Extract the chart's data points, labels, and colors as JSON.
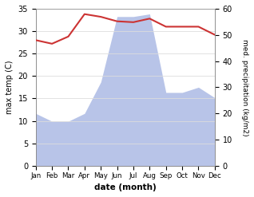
{
  "months": [
    "Jan",
    "Feb",
    "Mar",
    "Apr",
    "May",
    "Jun",
    "Jul",
    "Aug",
    "Sep",
    "Oct",
    "Nov",
    "Dec"
  ],
  "month_indices": [
    0,
    1,
    2,
    3,
    4,
    5,
    6,
    7,
    8,
    9,
    10,
    11
  ],
  "temperature": [
    28.0,
    27.2,
    28.8,
    33.8,
    33.2,
    32.2,
    32.0,
    32.8,
    31.0,
    31.0,
    31.0,
    29.2
  ],
  "precipitation": [
    20,
    17,
    17,
    20,
    32,
    57,
    57,
    58,
    28,
    28,
    30,
    26
  ],
  "temp_color": "#cc3333",
  "precip_color": "#b8c4e8",
  "temp_ylim": [
    0,
    35
  ],
  "precip_ylim": [
    0,
    60
  ],
  "temp_yticks": [
    0,
    5,
    10,
    15,
    20,
    25,
    30,
    35
  ],
  "precip_yticks": [
    0,
    10,
    20,
    30,
    40,
    50,
    60
  ],
  "ylabel_left": "max temp (C)",
  "ylabel_right": "med. precipitation (kg/m2)",
  "xlabel": "date (month)",
  "bg_color": "#ffffff",
  "fig_bg_color": "#ffffff",
  "grid_color": "#dddddd"
}
